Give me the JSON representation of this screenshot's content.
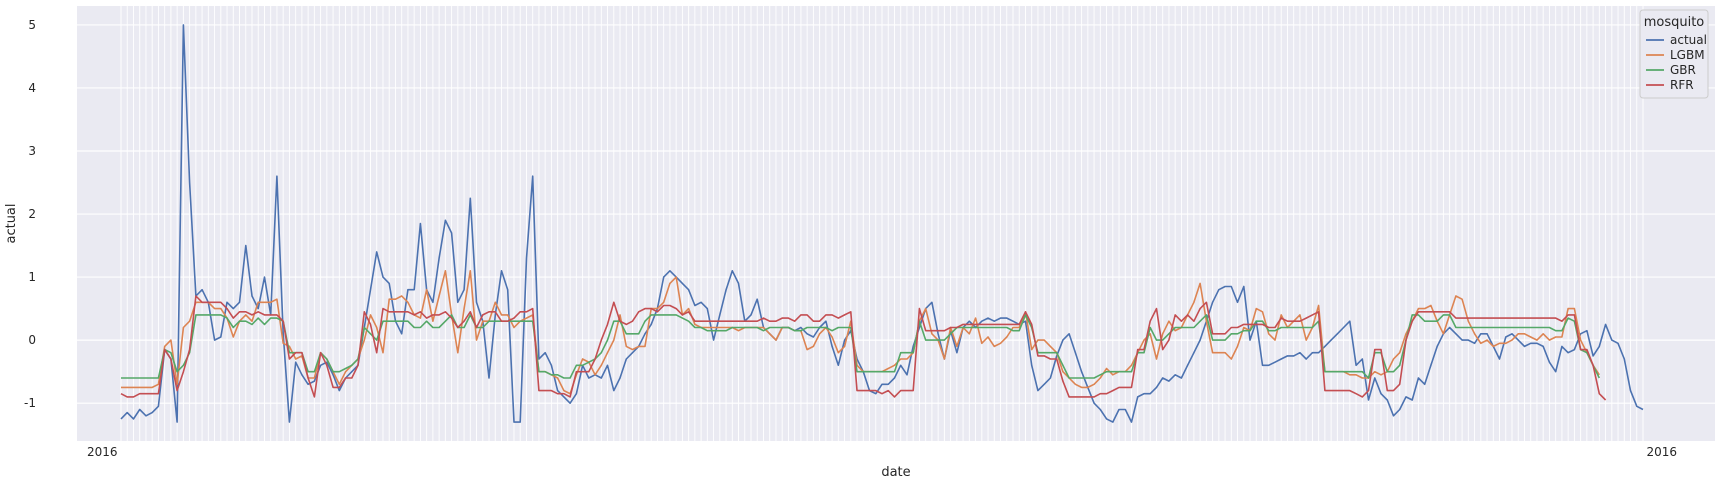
{
  "chart_data": {
    "type": "line",
    "xlabel": "date",
    "ylabel": "actual",
    "x_tick_labels_visible": [
      "2016",
      "2016"
    ],
    "ylim": [
      -1.6,
      5.3
    ],
    "yticks": [
      -1,
      0,
      1,
      2,
      3,
      4,
      5
    ],
    "ytick_labels": [
      "-1",
      "0",
      "1",
      "2",
      "3",
      "4",
      "5"
    ],
    "grid": true,
    "legend": {
      "title": "mosquito",
      "placement": "top-right"
    },
    "series": [
      {
        "name": "actual",
        "color": "#4c72b0",
        "values": [
          -1.25,
          -1.15,
          -1.25,
          -1.1,
          -1.2,
          -1.15,
          -1.05,
          -0.15,
          -0.3,
          -1.3,
          5.0,
          2.5,
          0.7,
          0.8,
          0.6,
          0.0,
          0.05,
          0.6,
          0.5,
          0.6,
          1.5,
          0.7,
          0.5,
          1.0,
          0.4,
          2.6,
          0.1,
          -1.3,
          -0.35,
          -0.55,
          -0.7,
          -0.65,
          -0.4,
          -0.35,
          -0.55,
          -0.8,
          -0.6,
          -0.5,
          -0.4,
          0.2,
          0.8,
          1.4,
          1.0,
          0.9,
          0.3,
          0.1,
          0.8,
          0.8,
          1.85,
          0.8,
          0.6,
          1.3,
          1.9,
          1.7,
          0.6,
          0.8,
          2.25,
          0.6,
          0.3,
          -0.6,
          0.4,
          1.1,
          0.8,
          -1.3,
          -1.3,
          1.3,
          2.6,
          -0.3,
          -0.2,
          -0.4,
          -0.8,
          -0.9,
          -1.0,
          -0.85,
          -0.4,
          -0.6,
          -0.55,
          -0.6,
          -0.4,
          -0.8,
          -0.6,
          -0.3,
          -0.2,
          -0.1,
          0.1,
          0.25,
          0.5,
          1.0,
          1.1,
          1.0,
          0.9,
          0.8,
          0.55,
          0.6,
          0.5,
          0.0,
          0.4,
          0.8,
          1.1,
          0.9,
          0.3,
          0.4,
          0.65,
          0.2,
          0.1,
          0.0,
          0.2,
          0.2,
          0.15,
          0.2,
          0.1,
          0.05,
          0.2,
          0.3,
          -0.1,
          -0.4,
          0.0,
          0.15,
          -0.3,
          -0.5,
          -0.8,
          -0.85,
          -0.7,
          -0.7,
          -0.6,
          -0.4,
          -0.55,
          -0.1,
          0.2,
          0.5,
          0.6,
          0.1,
          -0.3,
          0.15,
          -0.2,
          0.2,
          0.3,
          0.2,
          0.3,
          0.35,
          0.3,
          0.35,
          0.35,
          0.3,
          0.25,
          0.3,
          -0.4,
          -0.8,
          -0.7,
          -0.6,
          -0.25,
          0.0,
          0.1,
          -0.2,
          -0.5,
          -0.75,
          -1.0,
          -1.1,
          -1.25,
          -1.3,
          -1.1,
          -1.1,
          -1.3,
          -0.9,
          -0.85,
          -0.85,
          -0.75,
          -0.6,
          -0.65,
          -0.55,
          -0.6,
          -0.4,
          -0.2,
          0.0,
          0.3,
          0.6,
          0.8,
          0.85,
          0.85,
          0.6,
          0.85,
          0.0,
          0.3,
          -0.4,
          -0.4,
          -0.35,
          -0.3,
          -0.25,
          -0.25,
          -0.2,
          -0.3,
          -0.2,
          -0.2,
          -0.1,
          0.0,
          0.1,
          0.2,
          0.3,
          -0.4,
          -0.3,
          -0.95,
          -0.6,
          -0.85,
          -0.95,
          -1.2,
          -1.1,
          -0.9,
          -0.95,
          -0.6,
          -0.7,
          -0.4,
          -0.1,
          0.1,
          0.2,
          0.1,
          0.0,
          0.0,
          -0.05,
          0.1,
          0.1,
          -0.1,
          -0.3,
          0.05,
          0.1,
          0.0,
          -0.1,
          -0.05,
          -0.05,
          -0.1,
          -0.35,
          -0.5,
          -0.1,
          -0.2,
          -0.15,
          0.1,
          0.15,
          -0.25,
          -0.1,
          0.25,
          0.0,
          -0.05,
          -0.3,
          -0.8,
          -1.05,
          -1.1
        ]
      },
      {
        "name": "LGBM",
        "color": "#dd8452",
        "values": [
          -0.75,
          -0.75,
          -0.75,
          -0.75,
          -0.75,
          -0.75,
          -0.7,
          -0.1,
          0.0,
          -0.7,
          0.2,
          0.3,
          0.6,
          0.6,
          0.6,
          0.5,
          0.5,
          0.35,
          0.05,
          0.3,
          0.4,
          0.3,
          0.6,
          0.6,
          0.6,
          0.65,
          -0.05,
          -0.1,
          -0.3,
          -0.25,
          -0.6,
          -0.6,
          -0.2,
          -0.3,
          -0.5,
          -0.7,
          -0.5,
          -0.4,
          -0.3,
          0.0,
          0.4,
          0.2,
          -0.2,
          0.65,
          0.65,
          0.7,
          0.6,
          0.4,
          0.35,
          0.8,
          0.3,
          0.7,
          1.1,
          0.4,
          -0.2,
          0.5,
          1.1,
          0.0,
          0.3,
          0.3,
          0.6,
          0.4,
          0.4,
          0.2,
          0.3,
          0.35,
          0.4,
          -0.5,
          -0.5,
          -0.55,
          -0.6,
          -0.8,
          -0.85,
          -0.55,
          -0.3,
          -0.35,
          -0.55,
          -0.4,
          -0.2,
          0.0,
          0.4,
          -0.1,
          -0.15,
          -0.1,
          -0.1,
          0.5,
          0.5,
          0.6,
          0.9,
          1.0,
          0.4,
          0.5,
          0.25,
          0.2,
          0.2,
          0.2,
          0.2,
          0.2,
          0.2,
          0.15,
          0.2,
          0.2,
          0.2,
          0.2,
          0.1,
          0.0,
          0.2,
          0.2,
          0.15,
          0.15,
          -0.15,
          -0.1,
          0.1,
          0.2,
          0.05,
          -0.2,
          -0.1,
          0.3,
          -0.4,
          -0.5,
          -0.5,
          -0.5,
          -0.5,
          -0.45,
          -0.4,
          -0.3,
          -0.3,
          -0.2,
          0.3,
          0.5,
          0.1,
          0.0,
          -0.3,
          0.2,
          -0.1,
          0.2,
          0.1,
          0.35,
          -0.05,
          0.05,
          -0.1,
          -0.05,
          0.05,
          0.2,
          0.2,
          0.45,
          -0.15,
          0.0,
          0.0,
          -0.1,
          -0.2,
          -0.5,
          -0.6,
          -0.7,
          -0.75,
          -0.75,
          -0.7,
          -0.6,
          -0.45,
          -0.55,
          -0.5,
          -0.5,
          -0.4,
          -0.2,
          0.0,
          0.1,
          -0.3,
          0.1,
          0.3,
          0.15,
          0.2,
          0.4,
          0.6,
          0.9,
          0.3,
          -0.2,
          -0.2,
          -0.2,
          -0.3,
          -0.1,
          0.2,
          0.15,
          0.5,
          0.45,
          0.1,
          0.0,
          0.4,
          0.2,
          0.3,
          0.4,
          0.0,
          0.2,
          0.55,
          -0.5,
          -0.5,
          -0.5,
          -0.5,
          -0.55,
          -0.55,
          -0.6,
          -0.6,
          -0.5,
          -0.55,
          -0.5,
          -0.3,
          -0.2,
          0.1,
          0.3,
          0.5,
          0.5,
          0.55,
          0.3,
          0.1,
          0.4,
          0.7,
          0.65,
          0.3,
          0.1,
          -0.05,
          0.0,
          -0.1,
          -0.05,
          -0.05,
          0.0,
          0.1,
          0.1,
          0.05,
          0.0,
          0.1,
          0.0,
          0.05,
          0.05,
          0.5,
          0.5,
          0.0,
          -0.2,
          -0.4,
          -0.55
        ]
      },
      {
        "name": "GBR",
        "color": "#55a868",
        "values": [
          -0.6,
          -0.6,
          -0.6,
          -0.6,
          -0.6,
          -0.6,
          -0.6,
          -0.15,
          -0.2,
          -0.5,
          -0.4,
          -0.2,
          0.4,
          0.4,
          0.4,
          0.4,
          0.4,
          0.35,
          0.2,
          0.3,
          0.3,
          0.25,
          0.35,
          0.25,
          0.35,
          0.35,
          0.3,
          -0.2,
          -0.2,
          -0.2,
          -0.5,
          -0.5,
          -0.2,
          -0.3,
          -0.5,
          -0.5,
          -0.45,
          -0.4,
          -0.3,
          0.2,
          0.1,
          0.0,
          0.3,
          0.3,
          0.3,
          0.3,
          0.3,
          0.2,
          0.2,
          0.3,
          0.2,
          0.2,
          0.3,
          0.4,
          0.2,
          0.2,
          0.4,
          0.2,
          0.2,
          0.3,
          0.3,
          0.3,
          0.3,
          0.3,
          0.3,
          0.3,
          0.3,
          -0.5,
          -0.5,
          -0.55,
          -0.55,
          -0.6,
          -0.6,
          -0.4,
          -0.4,
          -0.35,
          -0.3,
          -0.2,
          0.0,
          0.3,
          0.3,
          0.1,
          0.1,
          0.1,
          0.3,
          0.4,
          0.4,
          0.4,
          0.4,
          0.4,
          0.35,
          0.3,
          0.2,
          0.2,
          0.15,
          0.15,
          0.15,
          0.15,
          0.2,
          0.2,
          0.2,
          0.2,
          0.2,
          0.15,
          0.2,
          0.2,
          0.2,
          0.2,
          0.15,
          0.15,
          0.2,
          0.2,
          0.2,
          0.2,
          0.15,
          0.2,
          0.2,
          0.2,
          -0.5,
          -0.5,
          -0.5,
          -0.5,
          -0.5,
          -0.5,
          -0.5,
          -0.2,
          -0.2,
          -0.2,
          0.3,
          0.0,
          0.0,
          0.0,
          0.0,
          0.1,
          0.2,
          0.2,
          0.2,
          0.2,
          0.2,
          0.2,
          0.2,
          0.2,
          0.2,
          0.15,
          0.15,
          0.4,
          0.2,
          -0.2,
          -0.2,
          -0.2,
          -0.2,
          -0.4,
          -0.6,
          -0.6,
          -0.6,
          -0.6,
          -0.6,
          -0.55,
          -0.5,
          -0.5,
          -0.5,
          -0.5,
          -0.5,
          -0.2,
          -0.2,
          0.2,
          0.0,
          0.0,
          0.1,
          0.2,
          0.2,
          0.2,
          0.2,
          0.3,
          0.4,
          0.0,
          0.0,
          0.0,
          0.1,
          0.1,
          0.15,
          0.15,
          0.3,
          0.3,
          0.15,
          0.15,
          0.2,
          0.2,
          0.2,
          0.2,
          0.2,
          0.2,
          0.3,
          -0.5,
          -0.5,
          -0.5,
          -0.5,
          -0.5,
          -0.5,
          -0.5,
          -0.6,
          -0.2,
          -0.2,
          -0.5,
          -0.5,
          -0.4,
          0.0,
          0.4,
          0.4,
          0.3,
          0.3,
          0.3,
          0.4,
          0.4,
          0.2,
          0.2,
          0.2,
          0.2,
          0.2,
          0.2,
          0.2,
          0.2,
          0.2,
          0.2,
          0.2,
          0.2,
          0.2,
          0.2,
          0.2,
          0.2,
          0.15,
          0.15,
          0.35,
          0.3,
          -0.15,
          -0.2,
          -0.4,
          -0.6
        ]
      },
      {
        "name": "RFR",
        "color": "#c44e52",
        "values": [
          -0.85,
          -0.9,
          -0.9,
          -0.85,
          -0.85,
          -0.85,
          -0.85,
          -0.15,
          -0.3,
          -0.8,
          -0.5,
          -0.15,
          0.7,
          0.6,
          0.6,
          0.6,
          0.6,
          0.5,
          0.35,
          0.45,
          0.45,
          0.4,
          0.45,
          0.4,
          0.4,
          0.4,
          0.3,
          -0.3,
          -0.2,
          -0.2,
          -0.6,
          -0.9,
          -0.2,
          -0.4,
          -0.75,
          -0.75,
          -0.6,
          -0.6,
          -0.4,
          0.45,
          0.25,
          -0.2,
          0.5,
          0.45,
          0.45,
          0.45,
          0.45,
          0.4,
          0.45,
          0.35,
          0.4,
          0.4,
          0.45,
          0.35,
          0.2,
          0.3,
          0.45,
          0.2,
          0.4,
          0.45,
          0.45,
          0.3,
          0.3,
          0.35,
          0.45,
          0.45,
          0.5,
          -0.8,
          -0.8,
          -0.8,
          -0.85,
          -0.85,
          -0.9,
          -0.5,
          -0.5,
          -0.5,
          -0.3,
          0.0,
          0.25,
          0.6,
          0.3,
          0.25,
          0.3,
          0.45,
          0.5,
          0.5,
          0.45,
          0.55,
          0.55,
          0.5,
          0.4,
          0.45,
          0.3,
          0.3,
          0.3,
          0.3,
          0.3,
          0.3,
          0.3,
          0.3,
          0.3,
          0.3,
          0.3,
          0.35,
          0.3,
          0.3,
          0.35,
          0.35,
          0.3,
          0.4,
          0.4,
          0.3,
          0.3,
          0.4,
          0.4,
          0.35,
          0.4,
          0.45,
          -0.8,
          -0.8,
          -0.8,
          -0.8,
          -0.85,
          -0.8,
          -0.9,
          -0.8,
          -0.8,
          -0.8,
          0.5,
          0.15,
          0.15,
          0.15,
          0.15,
          0.2,
          0.2,
          0.25,
          0.25,
          0.25,
          0.25,
          0.25,
          0.25,
          0.25,
          0.25,
          0.25,
          0.25,
          0.45,
          0.25,
          -0.25,
          -0.25,
          -0.3,
          -0.3,
          -0.65,
          -0.9,
          -0.9,
          -0.9,
          -0.9,
          -0.9,
          -0.85,
          -0.85,
          -0.8,
          -0.75,
          -0.75,
          -0.75,
          -0.15,
          -0.15,
          0.3,
          0.5,
          -0.15,
          0.0,
          0.4,
          0.3,
          0.4,
          0.3,
          0.5,
          0.6,
          0.1,
          0.1,
          0.1,
          0.2,
          0.2,
          0.25,
          0.25,
          0.25,
          0.25,
          0.2,
          0.2,
          0.35,
          0.3,
          0.3,
          0.3,
          0.35,
          0.4,
          0.45,
          -0.8,
          -0.8,
          -0.8,
          -0.8,
          -0.8,
          -0.85,
          -0.9,
          -0.8,
          -0.15,
          -0.15,
          -0.8,
          -0.8,
          -0.7,
          0.0,
          0.3,
          0.45,
          0.45,
          0.45,
          0.45,
          0.45,
          0.45,
          0.35,
          0.35,
          0.35,
          0.35,
          0.35,
          0.35,
          0.35,
          0.35,
          0.35,
          0.35,
          0.35,
          0.35,
          0.35,
          0.35,
          0.35,
          0.35,
          0.35,
          0.3,
          0.4,
          0.4,
          -0.15,
          -0.15,
          -0.4,
          -0.85,
          -0.95
        ]
      }
    ]
  }
}
